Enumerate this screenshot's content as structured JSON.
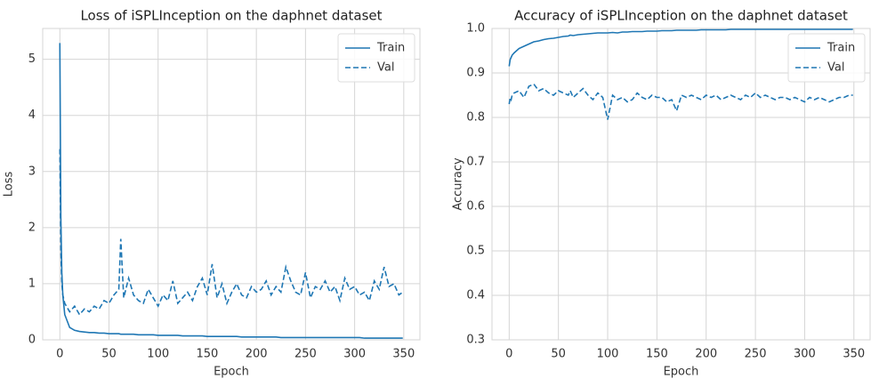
{
  "chart_data": [
    {
      "type": "line",
      "title": "Loss of iSPLInception on the daphnet dataset",
      "xlabel": "Epoch",
      "ylabel": "Loss",
      "x": [
        0,
        1,
        2,
        3,
        5,
        10,
        15,
        20,
        25,
        30,
        35,
        40,
        45,
        50,
        55,
        60,
        62,
        65,
        70,
        75,
        80,
        85,
        90,
        95,
        100,
        105,
        110,
        115,
        120,
        125,
        130,
        135,
        140,
        145,
        150,
        155,
        160,
        165,
        170,
        175,
        180,
        185,
        190,
        195,
        200,
        205,
        210,
        215,
        220,
        225,
        230,
        235,
        240,
        245,
        250,
        255,
        260,
        265,
        270,
        275,
        280,
        285,
        290,
        295,
        300,
        305,
        310,
        315,
        320,
        325,
        330,
        335,
        340,
        345,
        349
      ],
      "series": [
        {
          "name": "Train",
          "color": "#1f77b4",
          "style": "solid",
          "values": [
            5.29,
            2.2,
            1.2,
            0.8,
            0.45,
            0.22,
            0.17,
            0.15,
            0.14,
            0.13,
            0.13,
            0.12,
            0.12,
            0.11,
            0.11,
            0.11,
            0.1,
            0.1,
            0.1,
            0.1,
            0.09,
            0.09,
            0.09,
            0.09,
            0.08,
            0.08,
            0.08,
            0.08,
            0.08,
            0.07,
            0.07,
            0.07,
            0.07,
            0.07,
            0.06,
            0.06,
            0.06,
            0.06,
            0.06,
            0.06,
            0.06,
            0.05,
            0.05,
            0.05,
            0.05,
            0.05,
            0.05,
            0.05,
            0.05,
            0.04,
            0.04,
            0.04,
            0.04,
            0.04,
            0.04,
            0.04,
            0.04,
            0.04,
            0.04,
            0.04,
            0.04,
            0.04,
            0.04,
            0.04,
            0.04,
            0.04,
            0.03,
            0.03,
            0.03,
            0.03,
            0.03,
            0.03,
            0.03,
            0.03,
            0.03
          ]
        },
        {
          "name": "Val",
          "color": "#1f77b4",
          "style": "dashed",
          "values": [
            3.4,
            1.6,
            1.0,
            0.8,
            0.65,
            0.5,
            0.6,
            0.45,
            0.55,
            0.5,
            0.6,
            0.55,
            0.7,
            0.65,
            0.8,
            0.9,
            1.8,
            0.75,
            1.1,
            0.8,
            0.7,
            0.65,
            0.9,
            0.75,
            0.6,
            0.8,
            0.7,
            1.05,
            0.65,
            0.75,
            0.85,
            0.7,
            0.95,
            1.1,
            0.8,
            1.35,
            0.75,
            1.0,
            0.65,
            0.85,
            1.0,
            0.8,
            0.75,
            0.95,
            0.85,
            0.9,
            1.05,
            0.8,
            0.95,
            0.85,
            1.3,
            1.05,
            0.85,
            0.8,
            1.2,
            0.75,
            0.95,
            0.9,
            1.05,
            0.85,
            0.95,
            0.7,
            1.1,
            0.9,
            0.95,
            0.8,
            0.85,
            0.7,
            1.05,
            0.9,
            1.3,
            0.95,
            1.0,
            0.8,
            0.85
          ]
        }
      ],
      "xlim": [
        -17.45,
        366.45
      ],
      "ylim": [
        0,
        5.55
      ],
      "xticks": [
        0,
        50,
        100,
        150,
        200,
        250,
        300,
        350
      ],
      "yticks": [
        0,
        1,
        2,
        3,
        4,
        5
      ],
      "grid": true,
      "legend": "upper right"
    },
    {
      "type": "line",
      "title": "Accuracy of iSPLInception on the daphnet dataset",
      "xlabel": "Epoch",
      "ylabel": "Accuracy",
      "x": [
        0,
        1,
        2,
        3,
        5,
        10,
        15,
        20,
        25,
        30,
        35,
        40,
        45,
        50,
        55,
        60,
        62,
        65,
        70,
        75,
        80,
        85,
        90,
        95,
        100,
        105,
        110,
        115,
        120,
        125,
        130,
        135,
        140,
        145,
        150,
        155,
        160,
        165,
        170,
        175,
        180,
        185,
        190,
        195,
        200,
        205,
        210,
        215,
        220,
        225,
        230,
        235,
        240,
        245,
        250,
        255,
        260,
        265,
        270,
        275,
        280,
        285,
        290,
        295,
        300,
        305,
        310,
        315,
        320,
        325,
        330,
        335,
        340,
        345,
        349
      ],
      "series": [
        {
          "name": "Train",
          "color": "#1f77b4",
          "style": "solid",
          "values": [
            0.915,
            0.93,
            0.935,
            0.94,
            0.945,
            0.955,
            0.96,
            0.965,
            0.97,
            0.972,
            0.975,
            0.977,
            0.978,
            0.98,
            0.982,
            0.983,
            0.985,
            0.984,
            0.986,
            0.987,
            0.988,
            0.989,
            0.99,
            0.99,
            0.99,
            0.991,
            0.99,
            0.992,
            0.992,
            0.993,
            0.993,
            0.993,
            0.994,
            0.994,
            0.994,
            0.995,
            0.995,
            0.995,
            0.996,
            0.996,
            0.996,
            0.996,
            0.996,
            0.997,
            0.997,
            0.997,
            0.997,
            0.997,
            0.997,
            0.998,
            0.998,
            0.998,
            0.998,
            0.998,
            0.998,
            0.998,
            0.998,
            0.998,
            0.998,
            0.998,
            0.998,
            0.998,
            0.998,
            0.998,
            0.998,
            0.998,
            0.998,
            0.998,
            0.998,
            0.998,
            0.998,
            0.998,
            0.998,
            0.998,
            0.998
          ]
        },
        {
          "name": "Val",
          "color": "#1f77b4",
          "style": "dashed",
          "values": [
            0.83,
            0.845,
            0.84,
            0.85,
            0.855,
            0.86,
            0.845,
            0.87,
            0.875,
            0.86,
            0.865,
            0.855,
            0.85,
            0.86,
            0.855,
            0.85,
            0.86,
            0.845,
            0.855,
            0.865,
            0.85,
            0.84,
            0.855,
            0.845,
            0.795,
            0.85,
            0.84,
            0.845,
            0.835,
            0.84,
            0.855,
            0.845,
            0.84,
            0.85,
            0.845,
            0.845,
            0.835,
            0.84,
            0.815,
            0.85,
            0.845,
            0.85,
            0.845,
            0.84,
            0.85,
            0.845,
            0.85,
            0.84,
            0.845,
            0.85,
            0.845,
            0.84,
            0.85,
            0.845,
            0.855,
            0.845,
            0.85,
            0.845,
            0.84,
            0.845,
            0.845,
            0.84,
            0.845,
            0.84,
            0.835,
            0.845,
            0.84,
            0.845,
            0.84,
            0.835,
            0.84,
            0.845,
            0.845,
            0.85,
            0.85
          ]
        }
      ],
      "xlim": [
        -17.45,
        366.45
      ],
      "ylim": [
        0.3,
        1.0
      ],
      "xticks": [
        0,
        50,
        100,
        150,
        200,
        250,
        300,
        350
      ],
      "yticks": [
        0.3,
        0.4,
        0.5,
        0.6,
        0.7,
        0.8,
        0.9,
        {
          "value": 1.0,
          "label": "1.0"
        }
      ],
      "grid": true,
      "legend": "upper right"
    }
  ]
}
